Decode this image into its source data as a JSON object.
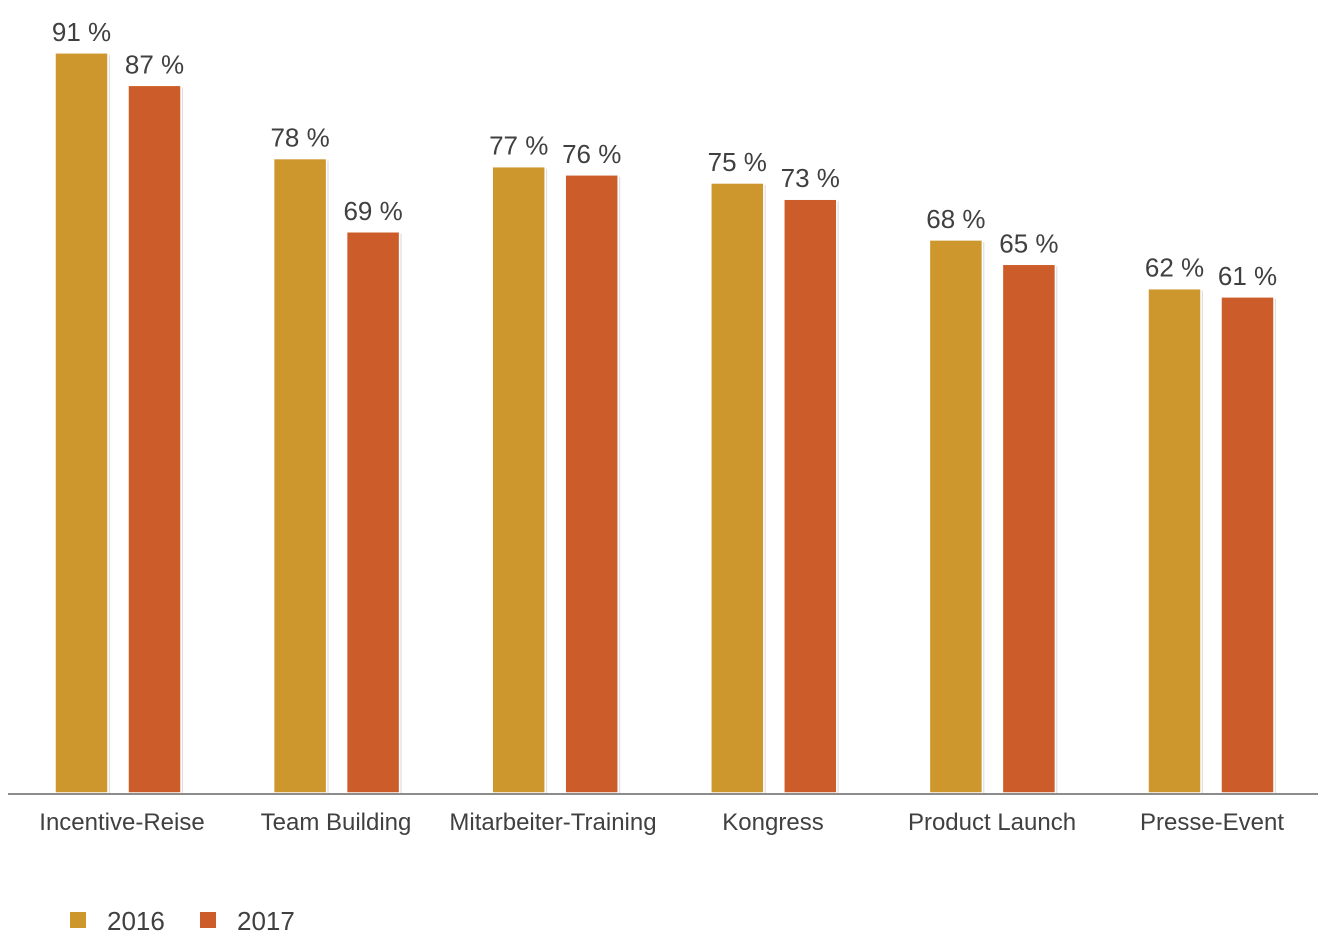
{
  "chart_data": {
    "type": "bar",
    "categories": [
      "Incentive-Reise",
      "Team Building",
      "Mitarbeiter-Training",
      "Kongress",
      "Product Launch",
      "Presse-Event"
    ],
    "series": [
      {
        "name": "2016",
        "values": [
          91,
          78,
          77,
          75,
          68,
          62
        ],
        "color": "#CD972E"
      },
      {
        "name": "2017",
        "values": [
          87,
          69,
          76,
          73,
          65,
          61
        ],
        "color": "#CC5C29"
      }
    ],
    "value_suffix": " %",
    "ylim": [
      0,
      100
    ],
    "grid": false,
    "legend_position": "bottom-left"
  }
}
